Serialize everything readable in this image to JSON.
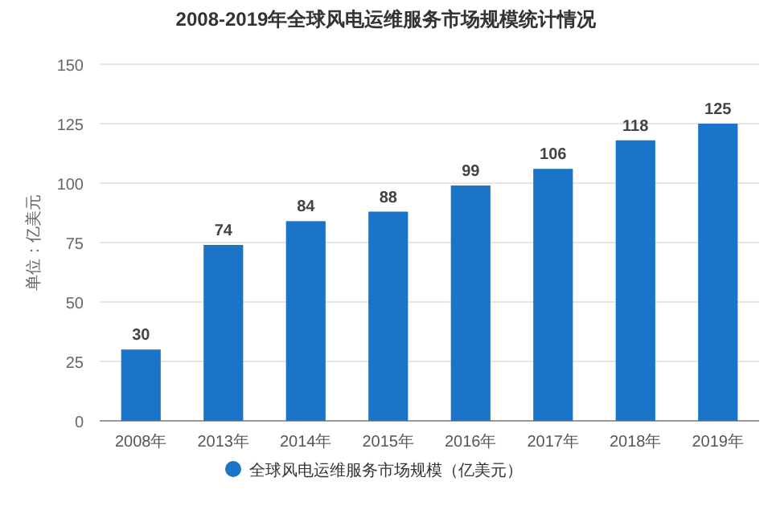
{
  "chart_data": {
    "type": "bar",
    "title": "2008-2019年全球风电运维服务市场规模统计情况",
    "ylabel": "单位：亿美元",
    "categories": [
      "2008年",
      "2013年",
      "2014年",
      "2015年",
      "2016年",
      "2017年",
      "2018年",
      "2019年"
    ],
    "series": [
      {
        "name": "全球风电运维服务市场规模（亿美元）",
        "color": "#1a75c8",
        "values": [
          30,
          74,
          84,
          88,
          99,
          106,
          118,
          125
        ]
      }
    ],
    "ylim": [
      0,
      150
    ],
    "yticks": [
      0,
      25,
      50,
      75,
      100,
      125,
      150
    ],
    "grid": "y",
    "legend": "bottom",
    "data_labels": true
  }
}
